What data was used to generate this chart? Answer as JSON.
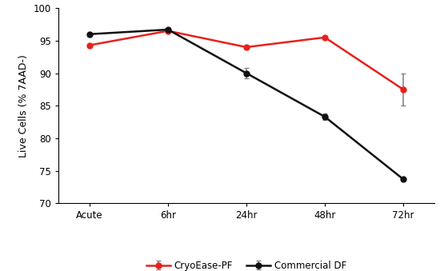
{
  "x_labels": [
    "Acute",
    "6hr",
    "24hr",
    "48hr",
    "72hr"
  ],
  "x_positions": [
    0,
    1,
    2,
    3,
    4
  ],
  "cryo_pf_values": [
    94.3,
    96.5,
    94.0,
    95.5,
    87.5
  ],
  "cryo_pf_errors": [
    0,
    0,
    0,
    0,
    2.5
  ],
  "commercial_df_values": [
    96.0,
    96.7,
    90.0,
    83.3,
    73.7
  ],
  "commercial_df_errors": [
    0,
    0,
    0.8,
    0.5,
    0
  ],
  "cryo_pf_color": "#e8211d",
  "commercial_df_color": "#111111",
  "error_bar_color": "#888888",
  "cryo_pf_label": "CryoEase-PF",
  "commercial_df_label": "Commercial DF",
  "ylabel": "Live Cells (% 7AAD-)",
  "ylim": [
    70,
    100
  ],
  "yticks": [
    70,
    75,
    80,
    85,
    90,
    95,
    100
  ],
  "marker_size": 5,
  "line_width": 1.8,
  "capsize": 2.5,
  "elinewidth": 1.2,
  "background_color": "#ffffff",
  "legend_fontsize": 8.5,
  "axis_fontsize": 9,
  "tick_fontsize": 8.5
}
